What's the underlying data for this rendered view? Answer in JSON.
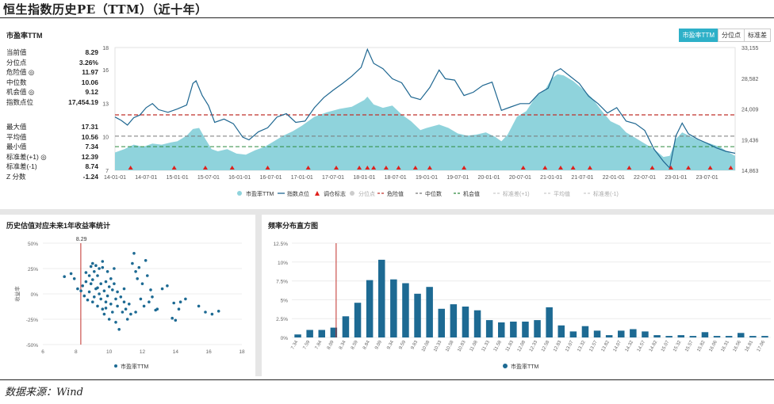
{
  "header": {
    "title": "恒生指数历史PE（TTM）（近十年）"
  },
  "source": "数据来源：Wind",
  "panel1": {
    "title": "市盈率TTM",
    "tabs": [
      "市盈率TTM",
      "分位点",
      "标准差"
    ],
    "stats_top": [
      {
        "label": "当前值",
        "value": "8.29"
      },
      {
        "label": "分位点",
        "value": "3.26%"
      },
      {
        "label": "危险值 ◎",
        "value": "11.97"
      },
      {
        "label": "中位数",
        "value": "10.06"
      },
      {
        "label": "机会值 ◎",
        "value": "9.12"
      },
      {
        "label": "指数点位",
        "value": "17,454.19"
      }
    ],
    "stats_bottom": [
      {
        "label": "最大值",
        "value": "17.31"
      },
      {
        "label": "平均值",
        "value": "10.56"
      },
      {
        "label": "最小值",
        "value": "7.34"
      },
      {
        "label": "标准差(+1) ◎",
        "value": "12.39"
      },
      {
        "label": "标准差(-1)",
        "value": "8.74"
      },
      {
        "label": "Z 分数",
        "value": "-1.24"
      }
    ]
  },
  "panel2": {
    "title": "历史估值对应未来1年收益率统计"
  },
  "panel3": {
    "title": "频率分布直方图"
  },
  "colors": {
    "area": "#8fd3dc",
    "index_line": "#1f6791",
    "danger": "#c0302a",
    "median": "#777777",
    "opportunity": "#2e8b3d",
    "bar": "#1d6a93",
    "marker": "#e0201c",
    "scatter": "#1d6a93"
  },
  "chart_data": [
    {
      "type": "line",
      "title": "市盈率TTM",
      "x_ticks": [
        "14-01-01",
        "14-07-01",
        "15-01-01",
        "15-07-01",
        "16-01-01",
        "16-07-01",
        "17-01-01",
        "17-07-01",
        "18-01-01",
        "18-07-01",
        "19-01-01",
        "19-07-01",
        "20-01-01",
        "20-07-01",
        "21-01-01",
        "21-07-01",
        "22-01-01",
        "22-07-01",
        "23-01-01",
        "23-07-01"
      ],
      "xlim": [
        2014.0,
        2023.95
      ],
      "y_left": {
        "ticks": [
          "7",
          "10",
          "13",
          "16",
          "18"
        ],
        "lim": [
          7,
          18
        ]
      },
      "y_right": {
        "ticks": [
          "14,863",
          "19,436",
          "24,009",
          "28,582",
          "33,155"
        ],
        "lim": [
          14863,
          33155
        ]
      },
      "reference_lines": {
        "danger": 11.97,
        "median": 10.06,
        "opportunity": 9.12
      },
      "pe_area": {
        "t": [
          2014.0,
          2014.15,
          2014.3,
          2014.45,
          2014.6,
          2014.75,
          2014.9,
          2015.0,
          2015.15,
          2015.25,
          2015.35,
          2015.45,
          2015.55,
          2015.65,
          2015.8,
          2015.95,
          2016.1,
          2016.25,
          2016.4,
          2016.55,
          2016.7,
          2016.85,
          2017.0,
          2017.2,
          2017.4,
          2017.6,
          2017.8,
          2018.0,
          2018.05,
          2018.15,
          2018.3,
          2018.45,
          2018.6,
          2018.75,
          2018.9,
          2019.0,
          2019.2,
          2019.35,
          2019.5,
          2019.65,
          2019.8,
          2019.95,
          2020.1,
          2020.2,
          2020.3,
          2020.45,
          2020.6,
          2020.75,
          2020.9,
          2021.0,
          2021.1,
          2021.2,
          2021.35,
          2021.5,
          2021.65,
          2021.8,
          2021.95,
          2022.1,
          2022.2,
          2022.35,
          2022.5,
          2022.65,
          2022.8,
          2022.9,
          2023.0,
          2023.1,
          2023.25,
          2023.4,
          2023.55,
          2023.7,
          2023.85,
          2023.95
        ],
        "v": [
          8.6,
          8.9,
          9.3,
          9.1,
          9.4,
          9.3,
          9.5,
          9.6,
          10.1,
          10.7,
          10.8,
          9.8,
          8.9,
          8.7,
          8.9,
          8.5,
          8.4,
          8.8,
          9.1,
          9.6,
          10.1,
          10.5,
          11.0,
          11.8,
          12.2,
          12.5,
          12.7,
          13.3,
          13.6,
          12.9,
          12.6,
          12.8,
          12.0,
          11.4,
          10.6,
          10.8,
          11.1,
          10.8,
          10.3,
          10.1,
          10.2,
          10.4,
          10.0,
          9.6,
          10.2,
          11.8,
          12.3,
          13.6,
          14.2,
          15.2,
          15.6,
          15.5,
          15.0,
          14.3,
          13.5,
          12.4,
          11.4,
          11.0,
          10.4,
          9.9,
          9.4,
          8.9,
          8.2,
          8.3,
          9.8,
          10.4,
          10.0,
          9.6,
          9.4,
          9.1,
          8.6,
          8.3
        ]
      },
      "index_line": {
        "t": [
          2014.0,
          2014.1,
          2014.2,
          2014.3,
          2014.4,
          2014.5,
          2014.6,
          2014.7,
          2014.85,
          2015.0,
          2015.15,
          2015.25,
          2015.3,
          2015.4,
          2015.5,
          2015.6,
          2015.75,
          2015.9,
          2016.05,
          2016.15,
          2016.3,
          2016.45,
          2016.6,
          2016.75,
          2016.9,
          2017.05,
          2017.2,
          2017.35,
          2017.5,
          2017.65,
          2017.8,
          2017.95,
          2018.05,
          2018.15,
          2018.3,
          2018.45,
          2018.6,
          2018.75,
          2018.9,
          2019.05,
          2019.2,
          2019.3,
          2019.45,
          2019.6,
          2019.75,
          2019.9,
          2020.05,
          2020.2,
          2020.35,
          2020.5,
          2020.65,
          2020.8,
          2020.95,
          2021.05,
          2021.15,
          2021.3,
          2021.45,
          2021.6,
          2021.75,
          2021.9,
          2022.05,
          2022.2,
          2022.35,
          2022.5,
          2022.65,
          2022.8,
          2022.9,
          2023.0,
          2023.1,
          2023.2,
          2023.35,
          2023.5,
          2023.65,
          2023.8,
          2023.95
        ],
        "v": [
          22800,
          22300,
          21600,
          22700,
          23100,
          24200,
          24800,
          23900,
          23500,
          24000,
          24600,
          27800,
          28200,
          26000,
          24500,
          22000,
          22500,
          21800,
          19800,
          19400,
          20600,
          21200,
          22800,
          23300,
          22000,
          22200,
          24200,
          25700,
          26800,
          27800,
          28900,
          30200,
          32900,
          30800,
          30000,
          28500,
          27900,
          25800,
          25400,
          27200,
          29800,
          28500,
          28300,
          26000,
          26500,
          27500,
          28000,
          23800,
          24300,
          24800,
          24800,
          26300,
          27100,
          29500,
          30000,
          28900,
          27800,
          25900,
          24800,
          23400,
          24200,
          22200,
          21800,
          20800,
          18000,
          16200,
          15200,
          20000,
          21900,
          20300,
          19500,
          18900,
          18200,
          17700,
          17400
        ]
      },
      "markers_t": [
        2014.25,
        2014.95,
        2015.45,
        2015.88,
        2016.45,
        2017.1,
        2017.55,
        2017.92,
        2018.05,
        2018.15,
        2018.35,
        2018.55,
        2018.82,
        2019.05,
        2019.6,
        2020.55,
        2020.9,
        2021.15,
        2021.35,
        2021.62,
        2022.25,
        2022.62,
        2022.92,
        2023.2,
        2023.55,
        2023.88
      ],
      "legend": [
        "市盈率TTM",
        "指数点位",
        "调仓标志",
        "分位点",
        "危险值",
        "中位数",
        "机会值",
        "标准差(+1)",
        "平均值",
        "标准差(-1)"
      ]
    },
    {
      "type": "scatter",
      "title": "历史估值对应未来1年收益率统计",
      "xlabel": "",
      "ylabel": "收益率",
      "x_ticks": [
        "6",
        "8",
        "10",
        "12",
        "14",
        "16",
        "18"
      ],
      "xlim": [
        6,
        18
      ],
      "y_ticks": [
        "50%",
        "25%",
        "0%",
        "-25%",
        "-50%"
      ],
      "ylim": [
        -50,
        50
      ],
      "current_value_label": "8.29",
      "current_value": 8.29,
      "legend": [
        "市盈率TTM"
      ],
      "points": [
        [
          7.3,
          17
        ],
        [
          7.7,
          20
        ],
        [
          7.9,
          15
        ],
        [
          8.1,
          5
        ],
        [
          8.3,
          3
        ],
        [
          8.4,
          8
        ],
        [
          8.5,
          -2
        ],
        [
          8.6,
          12
        ],
        [
          8.7,
          -6
        ],
        [
          8.8,
          18
        ],
        [
          8.8,
          2
        ],
        [
          8.9,
          27
        ],
        [
          8.9,
          10
        ],
        [
          9.0,
          -8
        ],
        [
          9.0,
          14
        ],
        [
          9.1,
          22
        ],
        [
          9.1,
          -3
        ],
        [
          9.2,
          5
        ],
        [
          9.2,
          28
        ],
        [
          9.3,
          -12
        ],
        [
          9.3,
          18
        ],
        [
          9.4,
          0
        ],
        [
          9.4,
          25
        ],
        [
          9.5,
          -5
        ],
        [
          9.5,
          10
        ],
        [
          9.6,
          -15
        ],
        [
          9.6,
          26
        ],
        [
          9.7,
          3
        ],
        [
          9.7,
          -20
        ],
        [
          9.8,
          12
        ],
        [
          9.8,
          -8
        ],
        [
          9.9,
          22
        ],
        [
          9.9,
          -2
        ],
        [
          10.0,
          7
        ],
        [
          10.0,
          -25
        ],
        [
          10.1,
          15
        ],
        [
          10.1,
          -10
        ],
        [
          10.2,
          4
        ],
        [
          10.2,
          -18
        ],
        [
          10.3,
          10
        ],
        [
          10.4,
          -5
        ],
        [
          10.4,
          -28
        ],
        [
          10.5,
          -12
        ],
        [
          10.5,
          2
        ],
        [
          10.6,
          -35
        ],
        [
          10.7,
          -3
        ],
        [
          10.8,
          -18
        ],
        [
          10.9,
          -8
        ],
        [
          11.0,
          -15
        ],
        [
          11.1,
          -25
        ],
        [
          11.2,
          -10
        ],
        [
          11.3,
          -20
        ],
        [
          11.4,
          30
        ],
        [
          11.5,
          40
        ],
        [
          11.6,
          22
        ],
        [
          11.7,
          15
        ],
        [
          11.8,
          26
        ],
        [
          11.9,
          -5
        ],
        [
          12.0,
          10
        ],
        [
          12.1,
          -12
        ],
        [
          12.2,
          33
        ],
        [
          12.3,
          18
        ],
        [
          12.4,
          -8
        ],
        [
          12.5,
          4
        ],
        [
          12.6,
          -3
        ],
        [
          12.8,
          -16
        ],
        [
          13.2,
          5
        ],
        [
          13.5,
          8
        ],
        [
          13.9,
          -9
        ],
        [
          14.2,
          -15
        ],
        [
          14.3,
          -8
        ],
        [
          14.6,
          -5
        ],
        [
          15.4,
          -12
        ],
        [
          15.8,
          -18
        ],
        [
          16.2,
          -20
        ],
        [
          16.6,
          -17
        ],
        [
          9.0,
          30
        ],
        [
          9.6,
          32
        ],
        [
          10.3,
          25
        ],
        [
          8.6,
          21
        ],
        [
          9.3,
          6
        ],
        [
          9.8,
          -14
        ],
        [
          10.9,
          5
        ],
        [
          11.6,
          -18
        ],
        [
          12.9,
          -15
        ],
        [
          14.0,
          -26
        ],
        [
          13.8,
          -24
        ]
      ]
    },
    {
      "type": "bar",
      "title": "频率分布直方图",
      "categories": [
        "7.34",
        "7.59",
        "7.84",
        "8.09",
        "8.34",
        "8.59",
        "8.84",
        "9.09",
        "9.34",
        "9.59",
        "9.83",
        "10.08",
        "10.33",
        "10.58",
        "10.83",
        "11.08",
        "11.33",
        "11.58",
        "11.83",
        "12.08",
        "12.33",
        "12.58",
        "12.83",
        "13.07",
        "13.32",
        "13.57",
        "13.82",
        "14.07",
        "14.32",
        "14.57",
        "14.82",
        "15.07",
        "15.32",
        "15.57",
        "15.82",
        "16.06",
        "16.31",
        "16.56",
        "16.81",
        "17.06"
      ],
      "values": [
        0.4,
        1.0,
        1.0,
        1.3,
        2.8,
        4.6,
        7.6,
        10.3,
        7.7,
        7.2,
        5.8,
        6.7,
        3.8,
        4.4,
        4.1,
        3.6,
        2.3,
        2.0,
        2.1,
        2.1,
        2.3,
        4.0,
        1.6,
        0.8,
        1.5,
        0.9,
        0.3,
        0.9,
        1.1,
        0.8,
        0.3,
        0.2,
        0.3,
        0.2,
        0.7,
        0.2,
        0.2,
        0.6,
        0.2,
        0.2
      ],
      "y_ticks": [
        "12.5%",
        "10%",
        "7.5%",
        "5%",
        "2.5%",
        "0%"
      ],
      "ylim": [
        0,
        12.5
      ],
      "current_value": 8.29,
      "legend": [
        "市盈率TTM"
      ]
    }
  ]
}
